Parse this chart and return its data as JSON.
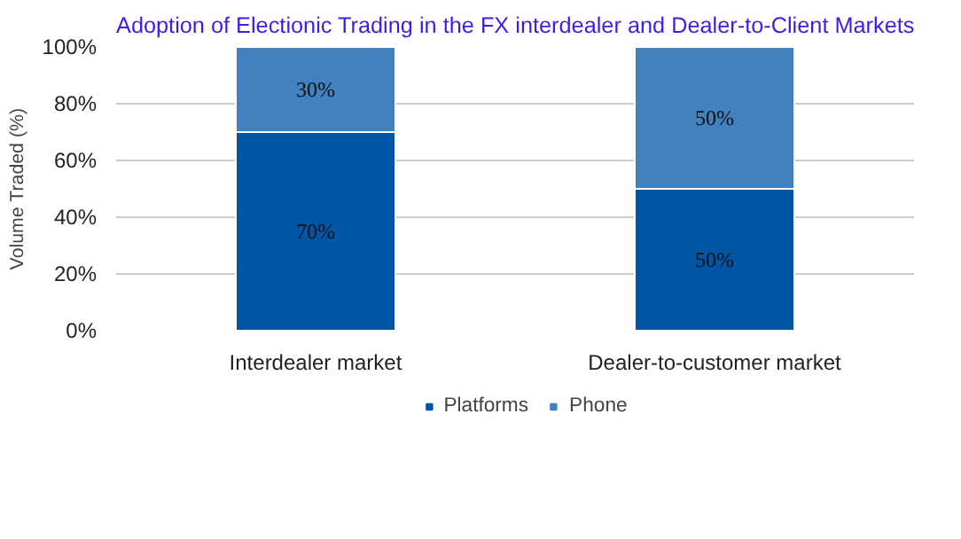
{
  "chart_data": {
    "type": "bar",
    "stacked": true,
    "title": "Adoption of Electionic Trading in the FX interdealer and Dealer-to-Client Markets",
    "ylabel": "Volume Traded (%)",
    "categories": [
      "Interdealer market",
      "Dealer-to-customer market"
    ],
    "series": [
      {
        "name": "Platforms",
        "color": "#0055a5",
        "values": [
          70,
          50
        ],
        "value_labels": [
          "70%",
          "50%"
        ]
      },
      {
        "name": "Phone",
        "color": "#4081be",
        "values": [
          30,
          50
        ],
        "value_labels": [
          "30%",
          "50%"
        ]
      }
    ],
    "ylim": [
      0,
      100
    ],
    "yticks": [
      {
        "value": 0,
        "label": "0%"
      },
      {
        "value": 20,
        "label": "20%"
      },
      {
        "value": 40,
        "label": "40%"
      },
      {
        "value": 60,
        "label": "60%"
      },
      {
        "value": 80,
        "label": "80%"
      },
      {
        "value": 100,
        "label": "100%"
      }
    ],
    "grid": "y",
    "legend": "bottom"
  }
}
